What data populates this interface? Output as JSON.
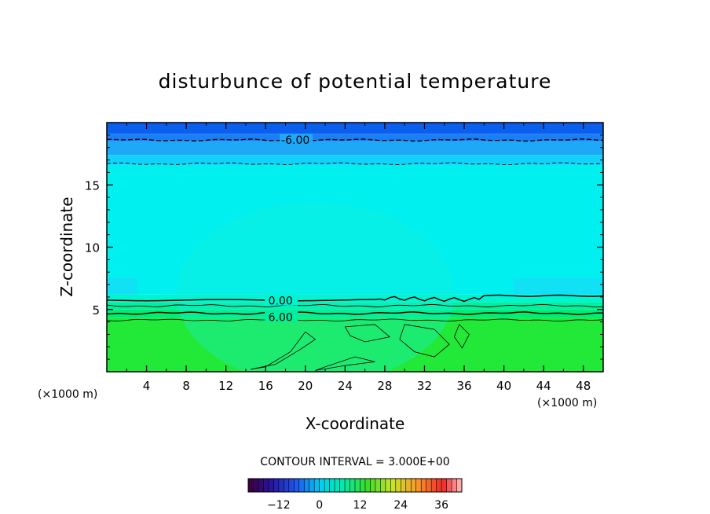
{
  "chart_data": {
    "type": "heatmap",
    "title": "disturbunce of potential temperature",
    "xlabel": "X-coordinate",
    "ylabel": "Z-coordinate",
    "x_unit_left": "(×1000 m)",
    "x_unit_right": "(×1000 m)",
    "xlim": [
      0,
      50
    ],
    "ylim": [
      0,
      20
    ],
    "x_ticks": [
      4,
      8,
      12,
      16,
      20,
      24,
      28,
      32,
      36,
      40,
      44,
      48
    ],
    "y_ticks": [
      5,
      10,
      15
    ],
    "contour_labels": [
      {
        "text": "-6.00",
        "x": 19,
        "z": 18.6
      },
      {
        "text": "0.00",
        "x": 17.5,
        "z": 5.7
      },
      {
        "text": "6.00",
        "x": 17.5,
        "z": 4.4
      }
    ],
    "contour_interval_text": "CONTOUR INTERVAL = 3.000E+00",
    "colorbar": {
      "min": -21,
      "max": 42,
      "tick_values": [
        -12,
        0,
        12,
        24,
        36
      ],
      "tick_labels": [
        "−12",
        "0",
        "12",
        "24",
        "36"
      ]
    },
    "field_bands": [
      {
        "z_from": 19.1,
        "z_to": 20,
        "value": -9
      },
      {
        "z_from": 18.5,
        "z_to": 19.1,
        "value": -7.5
      },
      {
        "z_from": 17.4,
        "z_to": 18.5,
        "value": -6
      },
      {
        "z_from": 16.6,
        "z_to": 17.4,
        "value": -4.5
      },
      {
        "z_from": 15.8,
        "z_to": 16.6,
        "value": -3
      },
      {
        "z_from": 6.2,
        "z_to": 15.8,
        "value": -1.5
      },
      {
        "z_from": 5.6,
        "z_to": 6.2,
        "value": 1.5
      },
      {
        "z_from": 5.0,
        "z_to": 5.6,
        "value": 3
      },
      {
        "z_from": 4.3,
        "z_to": 5.0,
        "value": 4.5
      },
      {
        "z_from": 0,
        "z_to": 4.3,
        "value": 7.5
      }
    ],
    "colors": {
      "band_deep_blue": "#0a5fee",
      "band_blue": "#1a7ef5",
      "band_sky": "#1ea8f8",
      "band_lightsky": "#12d2fa",
      "band_cyan": "#00f0f0",
      "band_aqua": "#00f4d0",
      "band_mint": "#00f0a0",
      "band_teal_green": "#00ee70",
      "band_green": "#22e838",
      "dome": "#10f2d8",
      "patch": "#1ad8f6"
    }
  }
}
